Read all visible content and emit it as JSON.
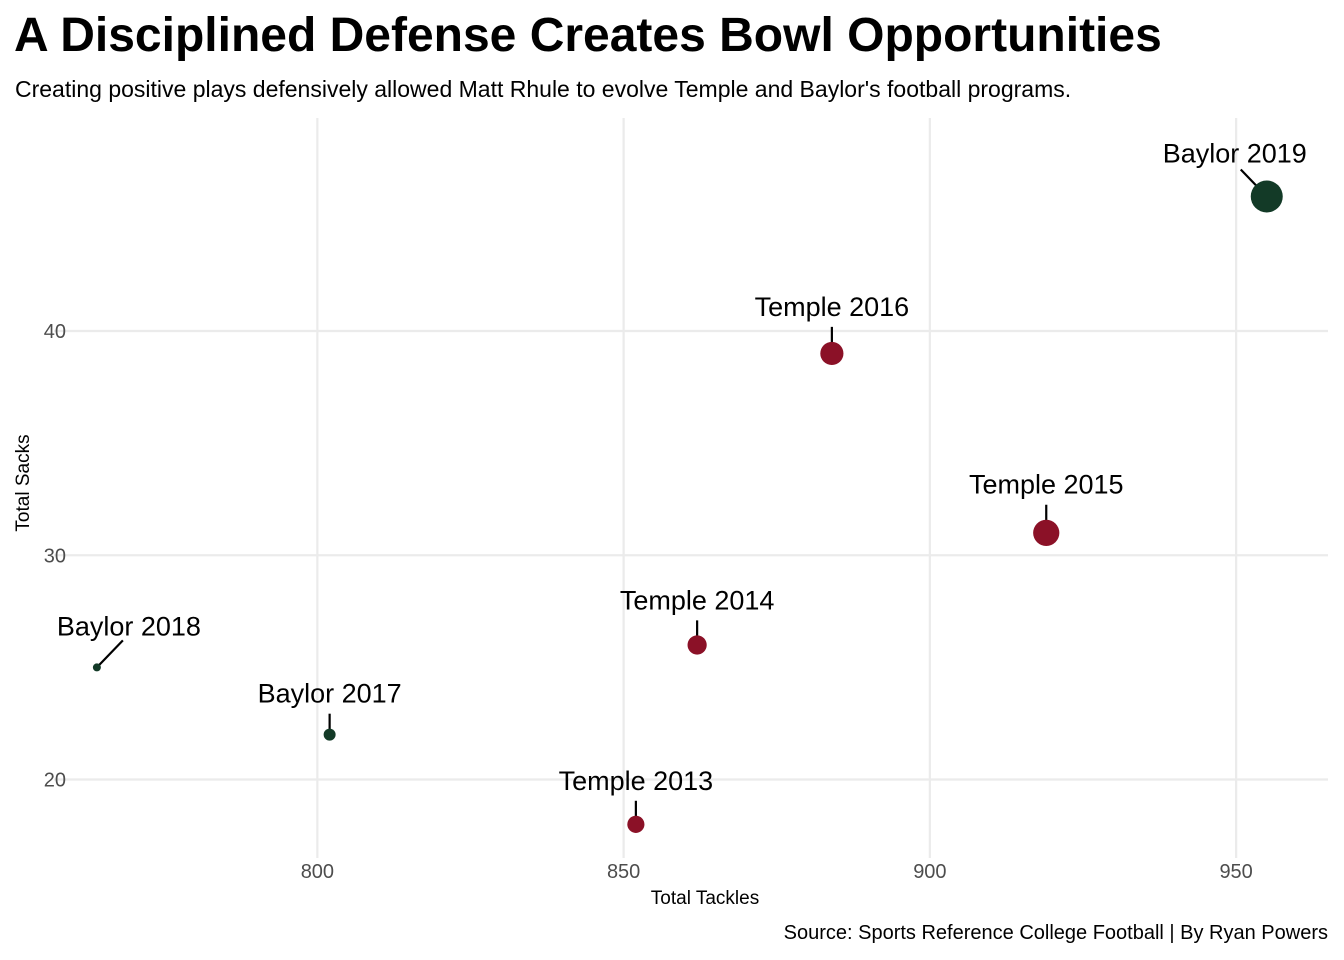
{
  "chart_data": {
    "type": "scatter",
    "title": "A Disciplined Defense Creates Bowl Opportunities",
    "subtitle": "Creating positive plays defensively allowed Matt Rhule to evolve Temple and Baylor's football programs.",
    "xlabel": "Total Tackles",
    "ylabel": "Total Sacks",
    "caption": "Source: Sports Reference College Football | By Ryan Powers",
    "xlim": [
      757,
      965
    ],
    "ylim": [
      16.5,
      49.5
    ],
    "x_ticks": [
      800,
      850,
      900,
      950
    ],
    "y_ticks": [
      20,
      30,
      40
    ],
    "grid": true,
    "legend": "none",
    "colors": {
      "Temple": "#8b1127",
      "Baylor": "#133a27"
    },
    "points": [
      {
        "label": "Temple 2013",
        "team": "Temple",
        "x": 852,
        "y": 18
      },
      {
        "label": "Temple 2014",
        "team": "Temple",
        "x": 862,
        "y": 26
      },
      {
        "label": "Temple 2015",
        "team": "Temple",
        "x": 919,
        "y": 31
      },
      {
        "label": "Temple 2016",
        "team": "Temple",
        "x": 884,
        "y": 39
      },
      {
        "label": "Baylor 2017",
        "team": "Baylor",
        "x": 802,
        "y": 22
      },
      {
        "label": "Baylor 2018",
        "team": "Baylor",
        "x": 764,
        "y": 25
      },
      {
        "label": "Baylor 2019",
        "team": "Baylor",
        "x": 955,
        "y": 46
      }
    ]
  }
}
